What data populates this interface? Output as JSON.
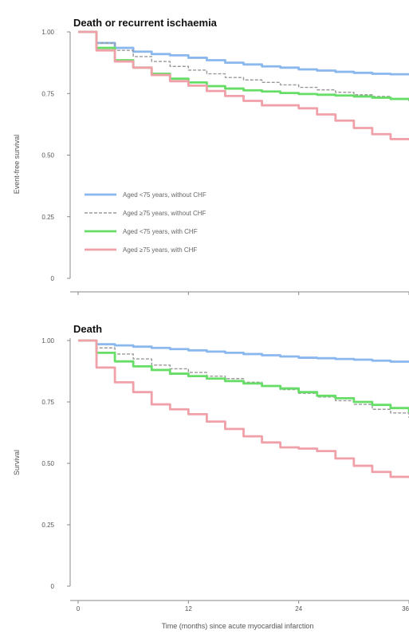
{
  "chart_data": [
    {
      "type": "line",
      "title": "Death or recurrent ischaemia",
      "xlabel": "",
      "ylabel": "Event-free survival",
      "x_ticks": [
        "0",
        "12",
        "24",
        "36"
      ],
      "y_ticks": [
        "0",
        "0.25",
        "0.50",
        "0.75",
        "1.00"
      ],
      "xlim": [
        0,
        36
      ],
      "ylim": [
        0,
        1
      ],
      "legend": "lower-left",
      "series": [
        {
          "name": "Aged <75 years, without CHF",
          "color": "#8ab8ee",
          "style": "solid",
          "x": [
            0,
            2,
            4,
            6,
            8,
            10,
            12,
            14,
            16,
            18,
            20,
            22,
            24,
            26,
            28,
            30,
            32,
            34,
            36
          ],
          "y": [
            1.0,
            0.955,
            0.935,
            0.92,
            0.91,
            0.905,
            0.895,
            0.885,
            0.875,
            0.868,
            0.86,
            0.855,
            0.848,
            0.843,
            0.838,
            0.834,
            0.83,
            0.828,
            0.826
          ]
        },
        {
          "name": "Aged ≥75 years, without CHF",
          "color": "#999999",
          "style": "dashed",
          "x": [
            0,
            2,
            4,
            6,
            8,
            10,
            12,
            14,
            16,
            18,
            20,
            22,
            24,
            26,
            28,
            30,
            32,
            34,
            36
          ],
          "y": [
            1.0,
            0.955,
            0.925,
            0.9,
            0.88,
            0.86,
            0.845,
            0.83,
            0.815,
            0.805,
            0.795,
            0.785,
            0.775,
            0.765,
            0.755,
            0.745,
            0.738,
            0.728,
            0.718
          ]
        },
        {
          "name": "Aged <75 years, with CHF",
          "color": "#66dd66",
          "style": "solid",
          "x": [
            0,
            2,
            4,
            6,
            8,
            10,
            12,
            14,
            16,
            18,
            20,
            22,
            24,
            26,
            28,
            30,
            32,
            34,
            36
          ],
          "y": [
            1.0,
            0.935,
            0.885,
            0.855,
            0.83,
            0.81,
            0.795,
            0.78,
            0.77,
            0.763,
            0.758,
            0.752,
            0.748,
            0.745,
            0.742,
            0.738,
            0.733,
            0.728,
            0.722
          ]
        },
        {
          "name": "Aged ≥75 years, with CHF",
          "color": "#f0a0a8",
          "style": "solid",
          "x": [
            0,
            2,
            4,
            6,
            8,
            10,
            12,
            14,
            16,
            18,
            20,
            22,
            24,
            26,
            28,
            30,
            32,
            34,
            36
          ],
          "y": [
            1.0,
            0.925,
            0.88,
            0.855,
            0.825,
            0.8,
            0.782,
            0.76,
            0.74,
            0.72,
            0.702,
            0.702,
            0.69,
            0.665,
            0.64,
            0.61,
            0.585,
            0.565,
            0.56
          ]
        }
      ]
    },
    {
      "type": "line",
      "title": "Death",
      "xlabel": "Time (months) since acute myocardial infarction",
      "ylabel": "Survival",
      "x_ticks": [
        "0",
        "12",
        "24",
        "36"
      ],
      "y_ticks": [
        "0",
        "0.25",
        "0.50",
        "0.75",
        "1.00"
      ],
      "xlim": [
        0,
        36
      ],
      "ylim": [
        0,
        1
      ],
      "series": [
        {
          "name": "Aged <75 years, without CHF",
          "color": "#8ab8ee",
          "style": "solid",
          "x": [
            0,
            2,
            4,
            6,
            8,
            10,
            12,
            14,
            16,
            18,
            20,
            22,
            24,
            26,
            28,
            30,
            32,
            34,
            36
          ],
          "y": [
            1.0,
            0.985,
            0.98,
            0.975,
            0.97,
            0.965,
            0.96,
            0.955,
            0.95,
            0.945,
            0.94,
            0.935,
            0.93,
            0.928,
            0.925,
            0.922,
            0.918,
            0.914,
            0.91
          ]
        },
        {
          "name": "Aged ≥75 years, without CHF",
          "color": "#999999",
          "style": "dashed",
          "x": [
            0,
            2,
            4,
            6,
            8,
            10,
            12,
            14,
            16,
            18,
            20,
            22,
            24,
            26,
            28,
            30,
            32,
            34,
            36
          ],
          "y": [
            1.0,
            0.97,
            0.945,
            0.925,
            0.9,
            0.885,
            0.87,
            0.855,
            0.845,
            0.83,
            0.815,
            0.8,
            0.785,
            0.77,
            0.755,
            0.74,
            0.72,
            0.705,
            0.685
          ]
        },
        {
          "name": "Aged <75 years, with CHF",
          "color": "#66dd66",
          "style": "solid",
          "x": [
            0,
            2,
            4,
            6,
            8,
            10,
            12,
            14,
            16,
            18,
            20,
            22,
            24,
            26,
            28,
            30,
            32,
            34,
            36
          ],
          "y": [
            1.0,
            0.95,
            0.915,
            0.895,
            0.88,
            0.865,
            0.855,
            0.845,
            0.835,
            0.825,
            0.815,
            0.805,
            0.79,
            0.775,
            0.765,
            0.75,
            0.738,
            0.725,
            0.708
          ]
        },
        {
          "name": "Aged ≥75 years, with CHF",
          "color": "#f0a0a8",
          "style": "solid",
          "x": [
            0,
            2,
            4,
            6,
            8,
            10,
            12,
            14,
            16,
            18,
            20,
            22,
            24,
            26,
            28,
            30,
            32,
            34,
            36
          ],
          "y": [
            1.0,
            0.89,
            0.83,
            0.79,
            0.74,
            0.72,
            0.7,
            0.67,
            0.64,
            0.61,
            0.585,
            0.565,
            0.56,
            0.55,
            0.52,
            0.49,
            0.465,
            0.445,
            0.44
          ]
        }
      ]
    }
  ]
}
